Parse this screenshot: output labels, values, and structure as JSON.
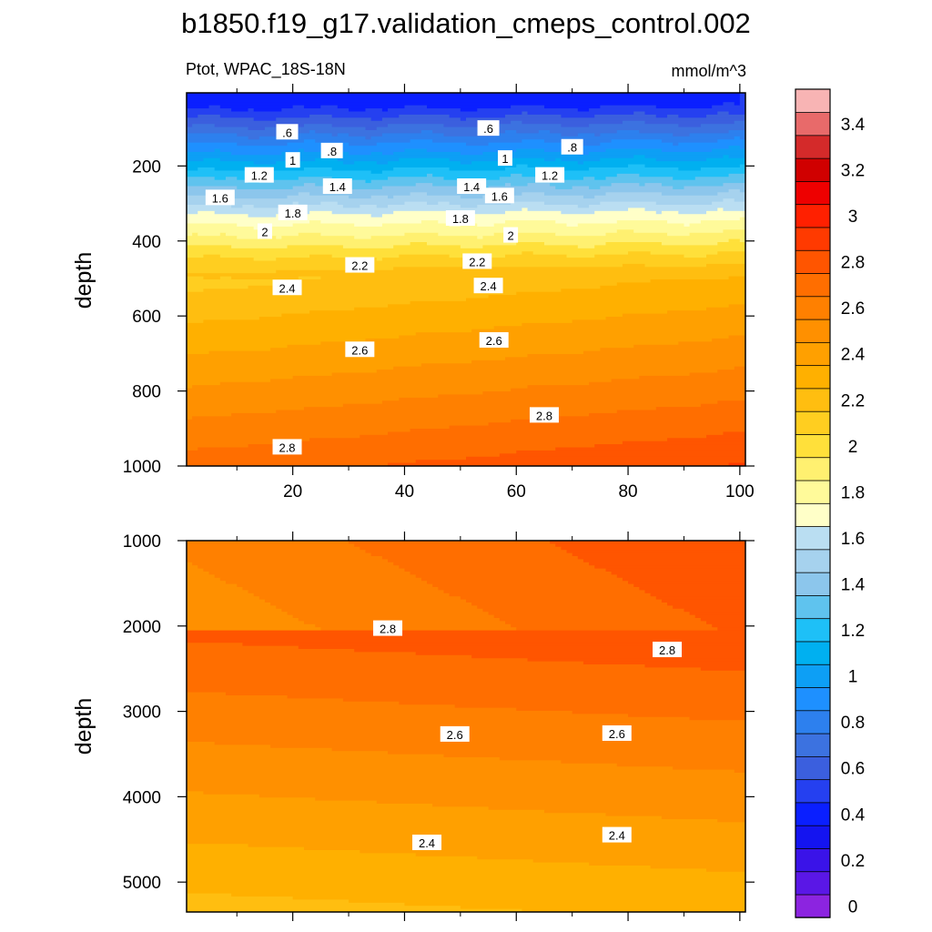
{
  "title": "b1850.f19_g17.validation_cmeps_control.002",
  "chart_data": {
    "type": "contour",
    "field_label": "Ptot, WPAC_18S-18N",
    "units": "mmol/m^3",
    "colorbar": {
      "levels": [
        0,
        0.1,
        0.2,
        0.3,
        0.4,
        0.5,
        0.6,
        0.7,
        0.8,
        0.9,
        1.0,
        1.1,
        1.2,
        1.3,
        1.4,
        1.5,
        1.6,
        1.7,
        1.8,
        1.9,
        2.0,
        2.1,
        2.2,
        2.3,
        2.4,
        2.5,
        2.6,
        2.7,
        2.8,
        2.9,
        3.0,
        3.1,
        3.2,
        3.3,
        3.4,
        3.5
      ],
      "tick_labels": [
        "0",
        "0.2",
        "0.4",
        "0.6",
        "0.8",
        "1",
        "1.2",
        "1.4",
        "1.6",
        "1.8",
        "2",
        "2.2",
        "2.4",
        "2.6",
        "2.8",
        "3",
        "3.2",
        "3.4"
      ],
      "colors": [
        "#8C24E0",
        "#5A17E6",
        "#3A13E8",
        "#1414F0",
        "#0A1FFF",
        "#2540F0",
        "#3B5FDE",
        "#3C72E0",
        "#2D80EE",
        "#1E90FF",
        "#0D9FF5",
        "#00B0F0",
        "#1EC0F7",
        "#5FC3EE",
        "#8CC6EC",
        "#A6D2EE",
        "#BADEF2",
        "#FFFFC8",
        "#FFFA9A",
        "#FFF070",
        "#FFE03A",
        "#FFCE20",
        "#FFBE10",
        "#FFB000",
        "#FFA000",
        "#FF9000",
        "#FF8000",
        "#FF6E00",
        "#FF5500",
        "#FF3A00",
        "#FF2000",
        "#EE0000",
        "#D00000",
        "#D42A2A",
        "#E86A6A",
        "#F8B4B4"
      ]
    },
    "panels": [
      {
        "name": "upper",
        "ylabel": "depth",
        "xlim": [
          1,
          101
        ],
        "xticks": [
          20,
          40,
          60,
          80,
          100
        ],
        "ylim": [
          1000,
          5
        ],
        "yticks": [
          200,
          400,
          600,
          800,
          1000
        ],
        "contour_labels": [
          {
            "text": ".6",
            "x": 19,
            "y": 110
          },
          {
            "text": ".6",
            "x": 55,
            "y": 100
          },
          {
            "text": ".8",
            "x": 27,
            "y": 160
          },
          {
            "text": ".8",
            "x": 70,
            "y": 150
          },
          {
            "text": "1",
            "x": 20,
            "y": 185
          },
          {
            "text": "1",
            "x": 58,
            "y": 180
          },
          {
            "text": "1.2",
            "x": 14,
            "y": 225
          },
          {
            "text": "1.2",
            "x": 66,
            "y": 225
          },
          {
            "text": "1.4",
            "x": 28,
            "y": 255
          },
          {
            "text": "1.4",
            "x": 52,
            "y": 255
          },
          {
            "text": "1.6",
            "x": 7,
            "y": 285
          },
          {
            "text": "1.6",
            "x": 57,
            "y": 280
          },
          {
            "text": "1.8",
            "x": 20,
            "y": 325
          },
          {
            "text": "1.8",
            "x": 50,
            "y": 340
          },
          {
            "text": "2",
            "x": 15,
            "y": 375
          },
          {
            "text": "2",
            "x": 59,
            "y": 385
          },
          {
            "text": "2.2",
            "x": 32,
            "y": 465
          },
          {
            "text": "2.2",
            "x": 53,
            "y": 455
          },
          {
            "text": "2.4",
            "x": 19,
            "y": 525
          },
          {
            "text": "2.4",
            "x": 55,
            "y": 520
          },
          {
            "text": "2.6",
            "x": 32,
            "y": 690
          },
          {
            "text": "2.6",
            "x": 56,
            "y": 665
          },
          {
            "text": "2.8",
            "x": 19,
            "y": 950
          },
          {
            "text": "2.8",
            "x": 65,
            "y": 865
          }
        ]
      },
      {
        "name": "lower",
        "ylabel": "depth",
        "xlim": [
          1,
          101
        ],
        "ylim": [
          5350,
          1000
        ],
        "yticks": [
          1000,
          2000,
          3000,
          4000,
          5000
        ],
        "contour_labels": [
          {
            "text": "2.8",
            "x": 37,
            "y": 2030
          },
          {
            "text": "2.8",
            "x": 87,
            "y": 2280
          },
          {
            "text": "2.6",
            "x": 49,
            "y": 3270
          },
          {
            "text": "2.6",
            "x": 78,
            "y": 3260
          },
          {
            "text": "2.4",
            "x": 44,
            "y": 4540
          },
          {
            "text": "2.4",
            "x": 78,
            "y": 4450
          }
        ]
      }
    ]
  }
}
